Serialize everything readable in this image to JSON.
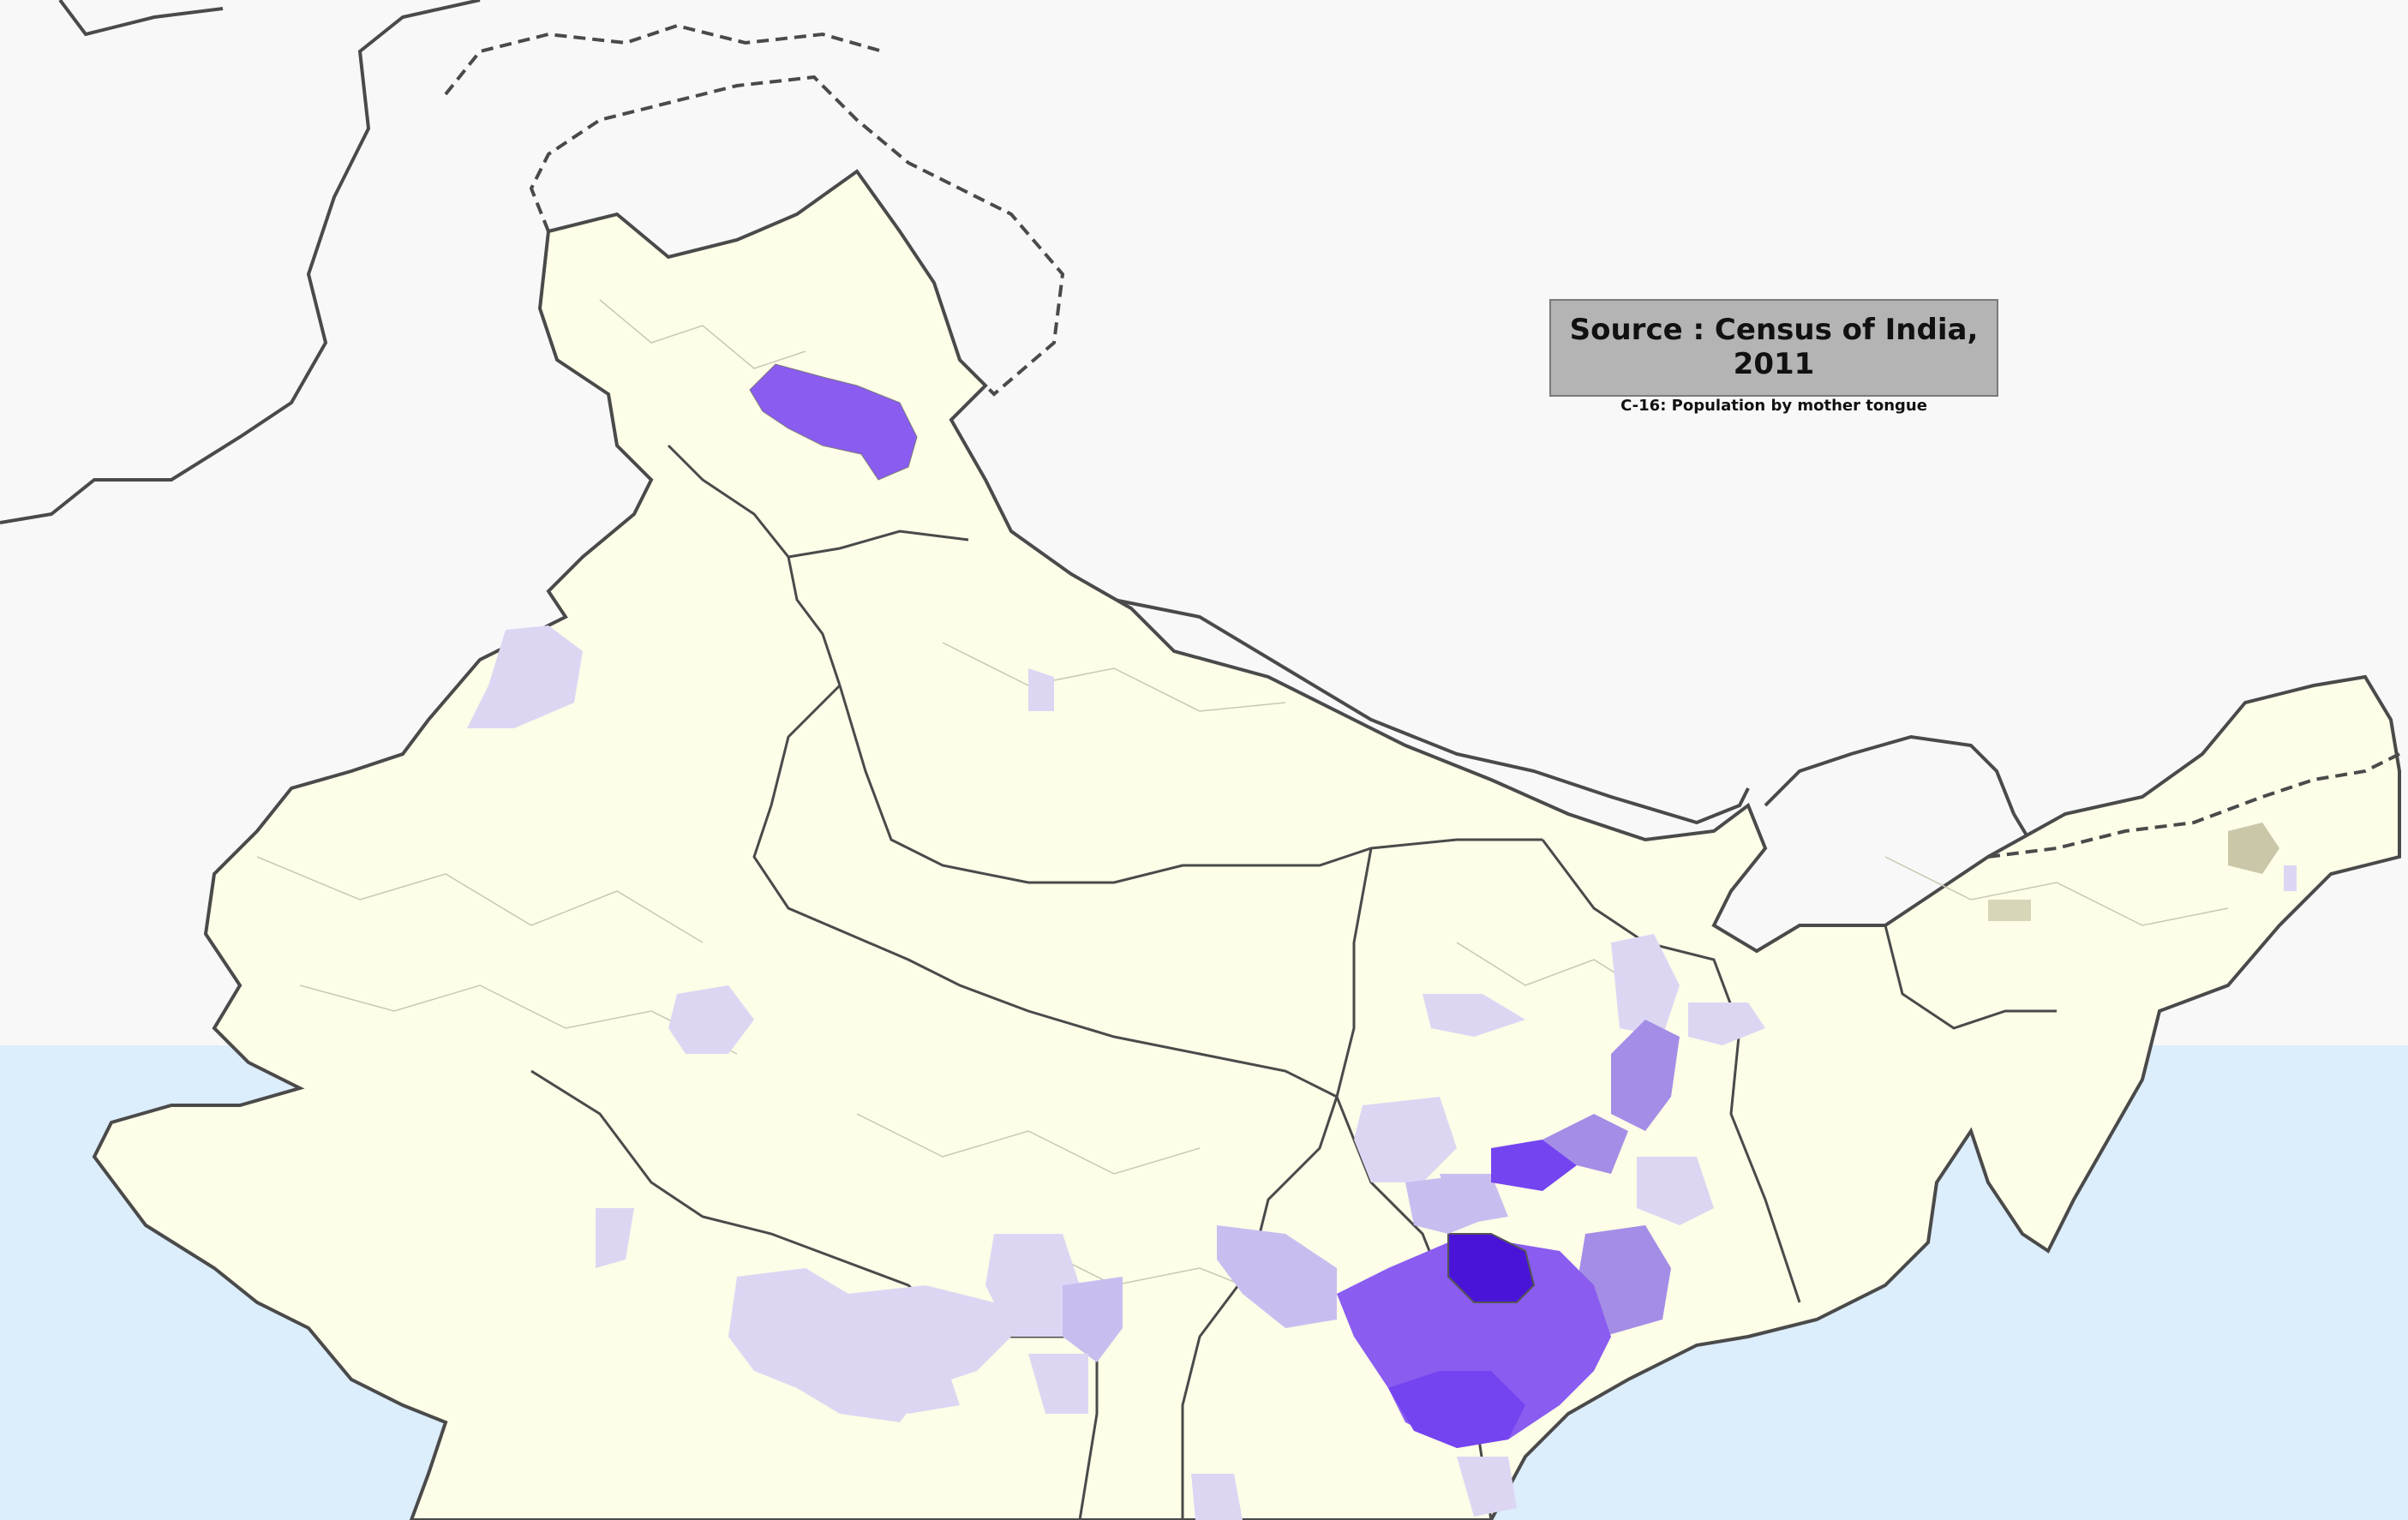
{
  "source_box": {
    "title": "Source : Census of India, 2011",
    "subtitle": "C-16:  Population by mother tongue"
  },
  "colors": {
    "background": "#f8f8f8",
    "sea": "#dcedfb",
    "land": "#fdfde8",
    "border": "#4a4a4a",
    "district_line": "#c8c8b4",
    "shade_lightest": "#ddd6f3",
    "shade_light": "#c9bdf0",
    "shade_medium": "#a48de6",
    "shade_strong": "#8a5cf0",
    "shade_darker": "#7444f0",
    "shade_darkest": "#4a14d8",
    "shade_grey": "#c9c7a8"
  }
}
